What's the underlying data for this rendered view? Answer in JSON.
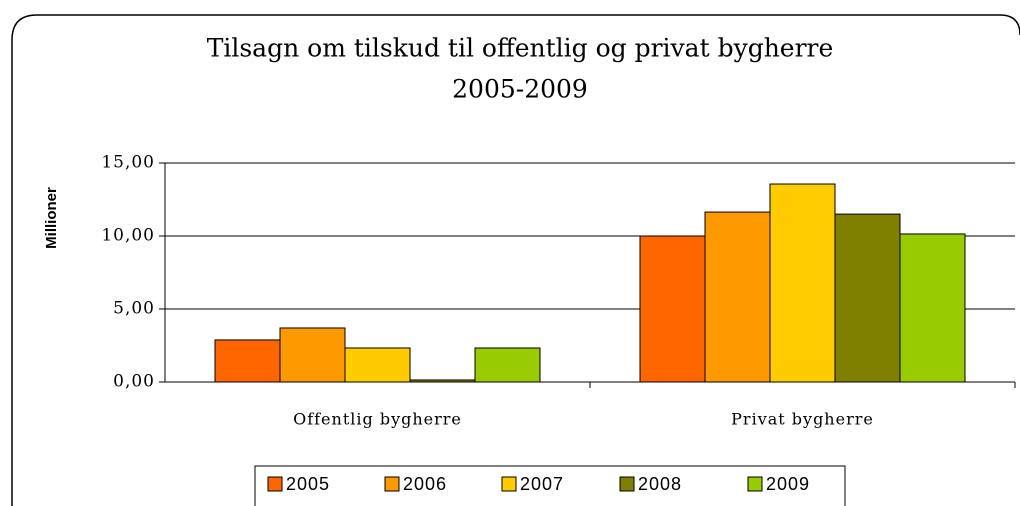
{
  "chart_data": {
    "type": "bar",
    "title": [
      "Tilsagn om tilskud til offentlig og privat bygherre",
      "2005-2009"
    ],
    "y_label": "Millioner",
    "categories": [
      "Offentlig bygherre",
      "Privat bygherre"
    ],
    "series": [
      {
        "name": "2005",
        "color": "#ff6600",
        "values": [
          2.88,
          10.0
        ]
      },
      {
        "name": "2006",
        "color": "#ff9900",
        "values": [
          3.7,
          11.64
        ]
      },
      {
        "name": "2007",
        "color": "#ffcc00",
        "values": [
          2.33,
          13.56
        ]
      },
      {
        "name": "2008",
        "color": "#808000",
        "values": [
          0.14,
          11.5
        ]
      },
      {
        "name": "2009",
        "color": "#99cc00",
        "values": [
          2.33,
          10.14
        ]
      }
    ],
    "ylim": [
      0,
      15
    ],
    "yticks": [
      {
        "value": 0,
        "label": "0,00"
      },
      {
        "value": 5,
        "label": "5,00"
      },
      {
        "value": 10,
        "label": "10,00"
      },
      {
        "value": 15,
        "label": "15,00"
      }
    ],
    "grid": true,
    "legend": "bottom"
  }
}
